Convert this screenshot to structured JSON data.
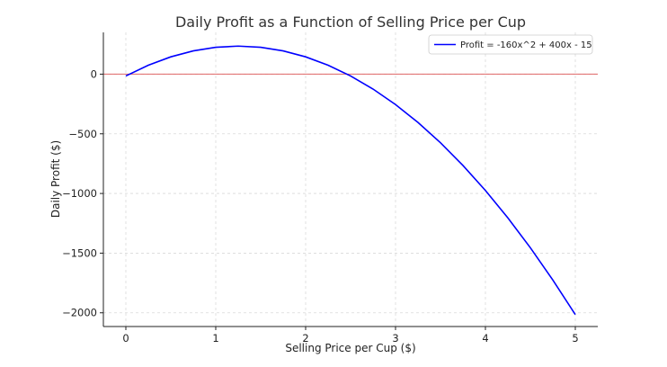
{
  "chart_data": {
    "type": "line",
    "title": "Daily Profit as a Function of Selling Price per Cup",
    "xlabel": "Selling Price per Cup ($)",
    "ylabel": "Daily Profit ($)",
    "xlim": [
      -0.25,
      5.25
    ],
    "ylim": [
      -2115,
      350
    ],
    "x_ticks": [
      0,
      1,
      2,
      3,
      4,
      5
    ],
    "y_ticks": [
      0,
      -500,
      -1000,
      -1500,
      -2000
    ],
    "x_tick_labels": [
      "0",
      "1",
      "2",
      "3",
      "4",
      "5"
    ],
    "y_tick_labels": [
      "0",
      "−500",
      "−1000",
      "−1500",
      "−2000"
    ],
    "grid": true,
    "legend_position": "top-right",
    "reference_line": {
      "y": 0,
      "color": "#e06666"
    },
    "series": [
      {
        "name": "Profit = -160x^2 + 400x - 15",
        "color": "#0000ff",
        "x": [
          0,
          0.25,
          0.5,
          0.75,
          1,
          1.25,
          1.5,
          1.75,
          2,
          2.25,
          2.5,
          2.75,
          3,
          3.25,
          3.5,
          3.75,
          4,
          4.25,
          4.5,
          4.75,
          5
        ],
        "y": [
          -15,
          75,
          145,
          195,
          225,
          235,
          225,
          195,
          145,
          75,
          -15,
          -125,
          -255,
          -405,
          -575,
          -765,
          -975,
          -1205,
          -1455,
          -1725,
          -2015
        ]
      }
    ]
  }
}
